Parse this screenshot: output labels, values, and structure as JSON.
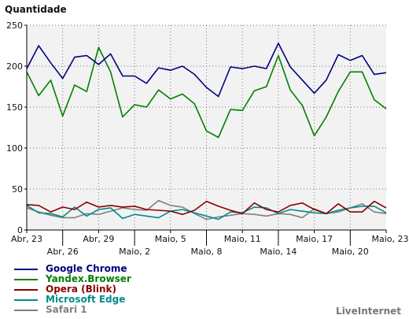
{
  "chart_data": {
    "type": "line",
    "ylabel": "Quantidade",
    "ylim": [
      0,
      250
    ],
    "yticks": [
      0,
      50,
      100,
      150,
      200,
      250
    ],
    "x_tick_labels": [
      {
        "index": 0,
        "label": "Abr, 23",
        "row": 0
      },
      {
        "index": 3,
        "label": "Abr, 26",
        "row": 1
      },
      {
        "index": 6,
        "label": "Abr, 29",
        "row": 0
      },
      {
        "index": 9,
        "label": "Maio, 2",
        "row": 1
      },
      {
        "index": 12,
        "label": "Maio, 5",
        "row": 0
      },
      {
        "index": 15,
        "label": "Maio, 8",
        "row": 1
      },
      {
        "index": 18,
        "label": "Maio, 11",
        "row": 0
      },
      {
        "index": 21,
        "label": "Maio, 14",
        "row": 1
      },
      {
        "index": 24,
        "label": "Maio, 17",
        "row": 0
      },
      {
        "index": 27,
        "label": "Maio, 20",
        "row": 1
      },
      {
        "index": 30,
        "label": "Maio, 23",
        "row": 0
      }
    ],
    "point_count": 31,
    "grid": true,
    "legend_position": "bottom-left",
    "series": [
      {
        "name": "Google Chrome",
        "color": "#000080",
        "values": [
          197,
          225,
          204,
          185,
          211,
          213,
          202,
          215,
          188,
          188,
          179,
          198,
          195,
          200,
          190,
          174,
          163,
          199,
          197,
          200,
          197,
          228,
          199,
          183,
          167,
          183,
          214,
          207,
          213,
          190,
          192
        ]
      },
      {
        "name": "Yandex.Browser",
        "color": "#008000",
        "values": [
          193,
          164,
          183,
          139,
          177,
          169,
          223,
          193,
          138,
          153,
          150,
          171,
          160,
          166,
          154,
          121,
          113,
          147,
          146,
          170,
          175,
          213,
          171,
          152,
          115,
          138,
          169,
          193,
          193,
          159,
          148
        ]
      },
      {
        "name": "Opera (Blink)",
        "color": "#8b0000",
        "values": [
          31,
          30,
          22,
          28,
          25,
          34,
          28,
          30,
          28,
          29,
          25,
          24,
          23,
          19,
          24,
          35,
          29,
          24,
          20,
          33,
          25,
          22,
          30,
          33,
          25,
          20,
          32,
          22,
          22,
          35,
          27
        ]
      },
      {
        "name": "Microsoft Edge",
        "color": "#008b8b",
        "values": [
          30,
          21,
          20,
          16,
          28,
          17,
          25,
          27,
          14,
          19,
          17,
          15,
          23,
          25,
          21,
          17,
          13,
          22,
          21,
          28,
          27,
          20,
          25,
          23,
          21,
          20,
          24,
          27,
          29,
          29,
          21
        ]
      },
      {
        "name": "Safari 1",
        "color": "#808080",
        "values": [
          27,
          22,
          18,
          15,
          15,
          20,
          19,
          23,
          27,
          25,
          24,
          36,
          30,
          28,
          20,
          13,
          16,
          18,
          20,
          19,
          17,
          20,
          19,
          15,
          26,
          20,
          22,
          27,
          32,
          22,
          20
        ]
      }
    ]
  },
  "brand_label": "LiveInternet"
}
